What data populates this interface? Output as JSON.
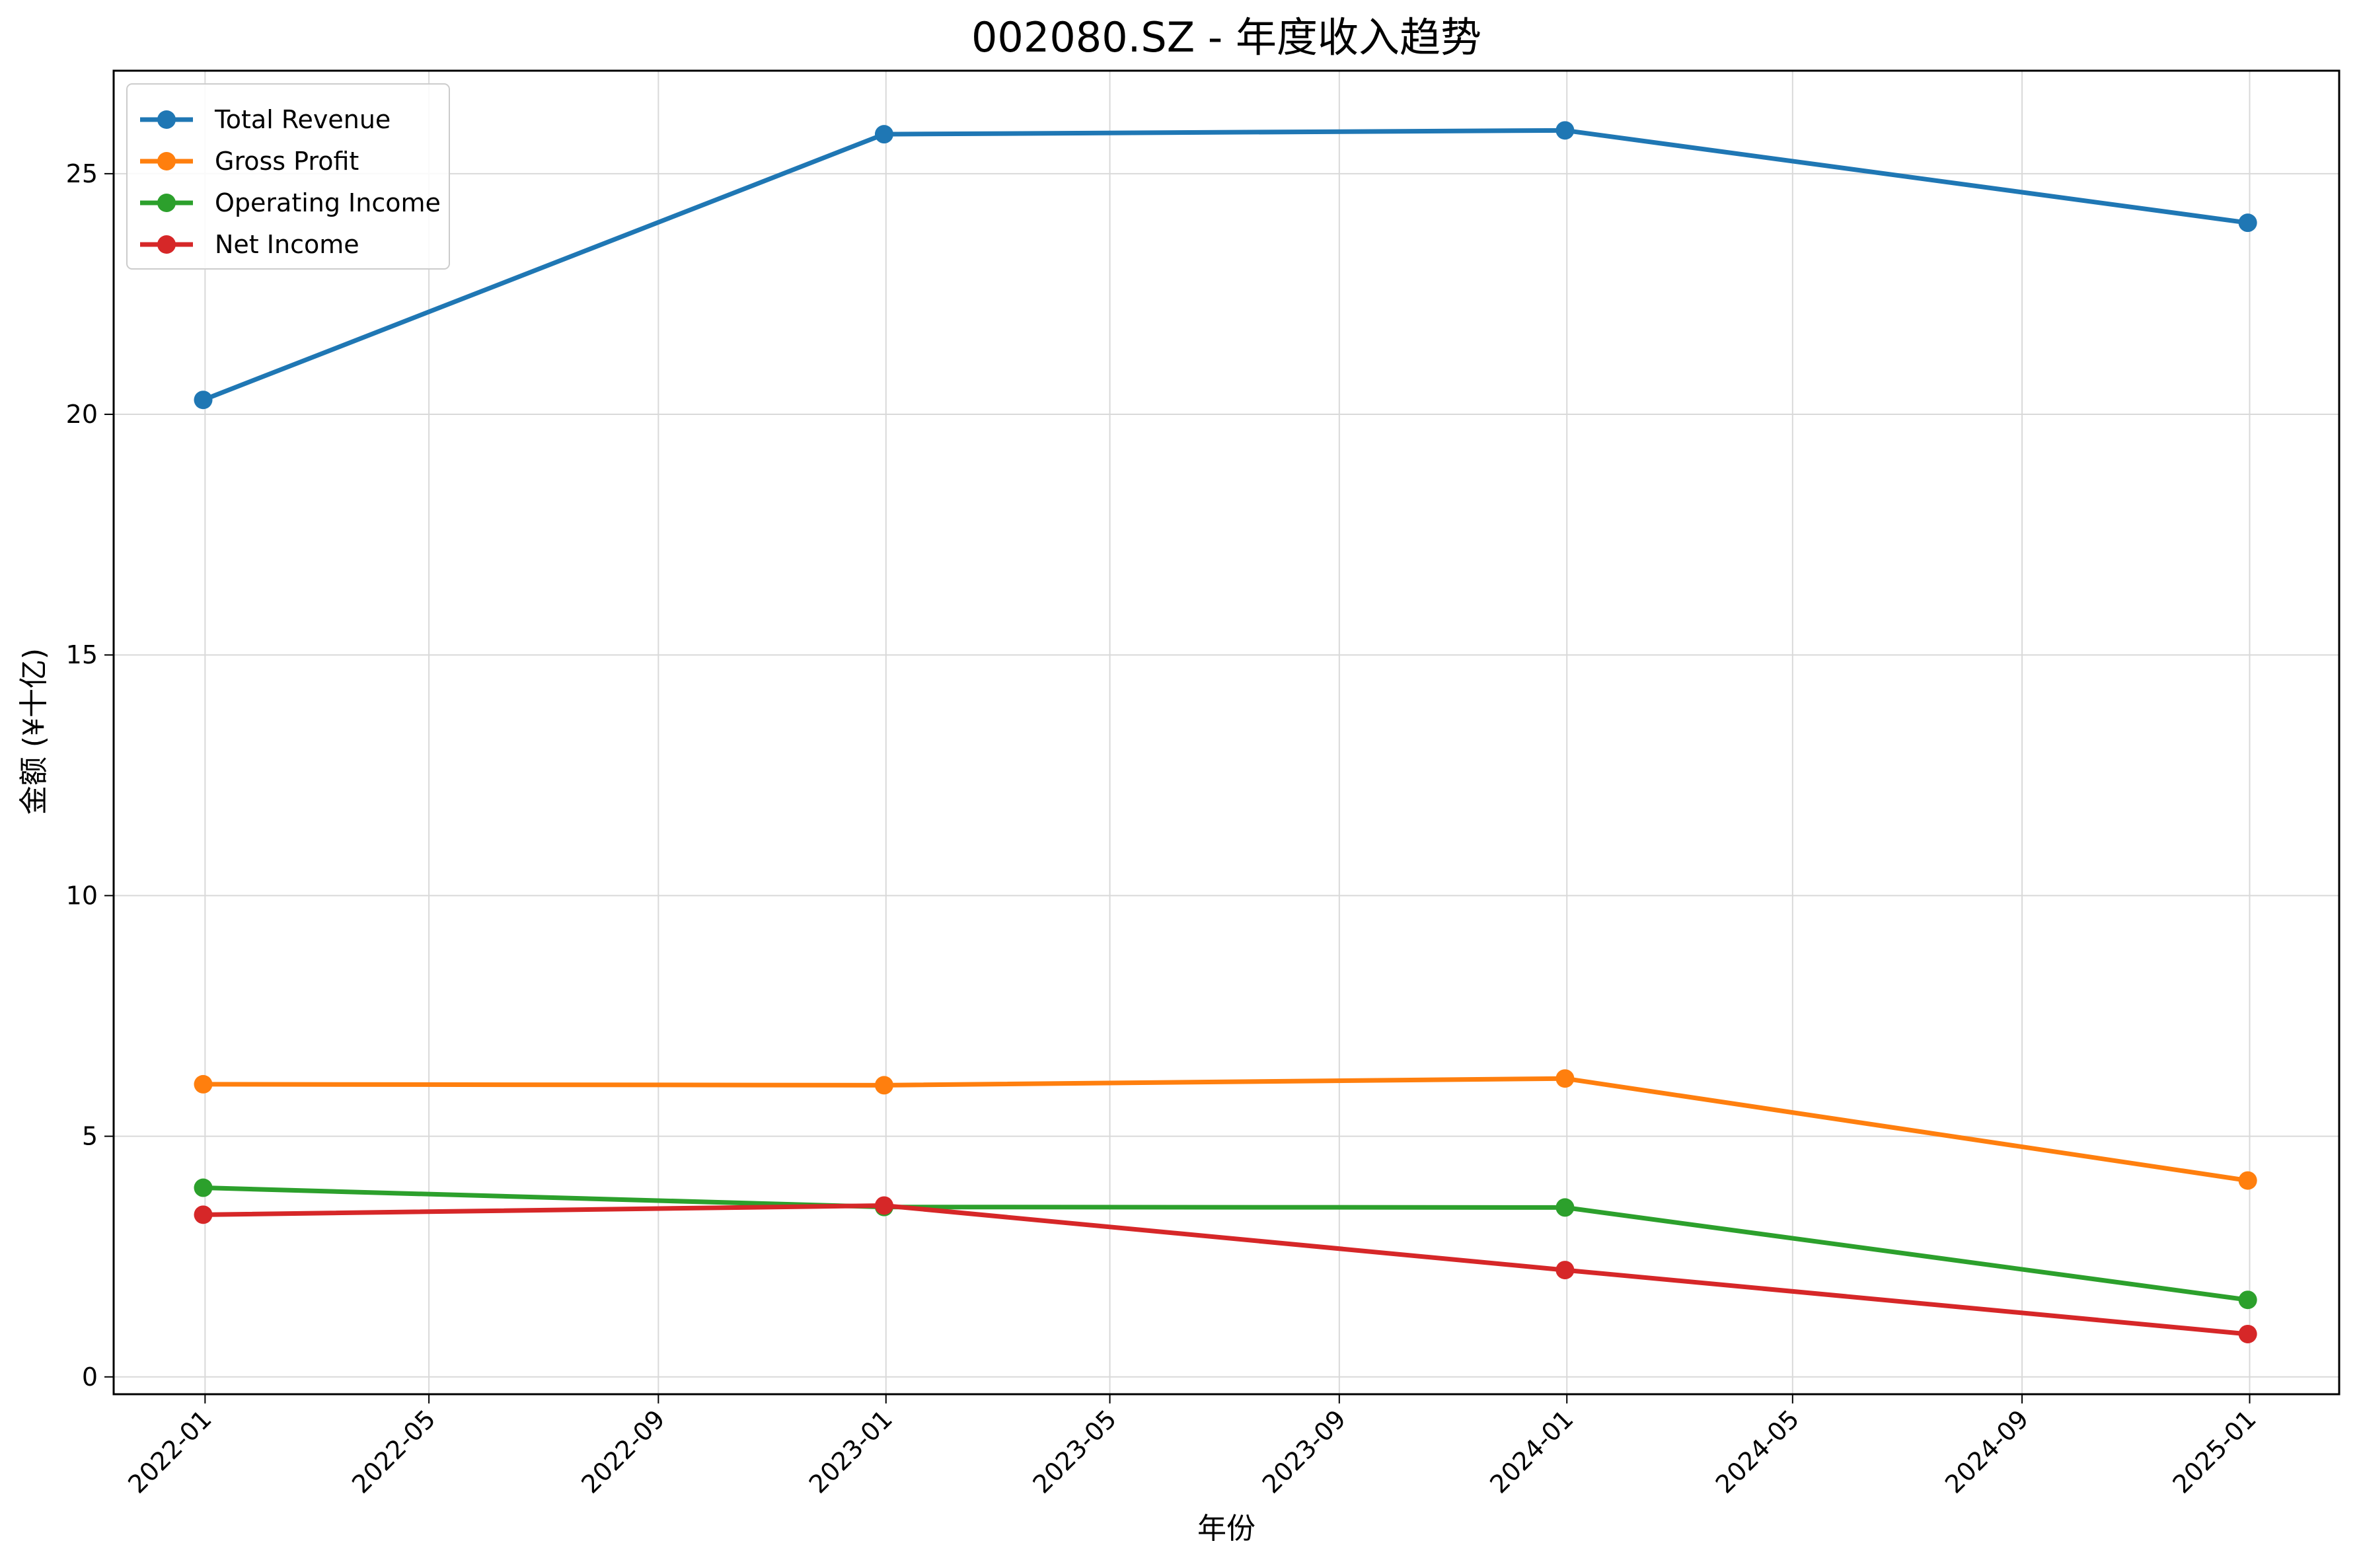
{
  "chart_data": {
    "type": "line",
    "title": "002080.SZ - 年度收入趋势",
    "xlabel": "年份",
    "ylabel": "金额 (¥十亿)",
    "x": [
      "2021-12-31",
      "2022-12-31",
      "2023-12-31",
      "2024-12-31"
    ],
    "x_ticks": [
      "2022-01",
      "2022-05",
      "2022-09",
      "2023-01",
      "2023-05",
      "2023-09",
      "2024-01",
      "2024-05",
      "2024-09",
      "2025-01"
    ],
    "x_range": [
      "2021-11-13",
      "2025-02-18"
    ],
    "y_ticks": [
      0,
      5,
      10,
      15,
      20,
      25
    ],
    "ylim": [
      -0.36,
      27.14
    ],
    "grid": true,
    "legend_position": "top-left",
    "series": [
      {
        "name": "Total Revenue",
        "color": "#1f77b4",
        "values": [
          20.3,
          25.82,
          25.9,
          23.98
        ]
      },
      {
        "name": "Gross Profit",
        "color": "#ff7f0e",
        "values": [
          6.08,
          6.06,
          6.2,
          4.08
        ]
      },
      {
        "name": "Operating Income",
        "color": "#2ca02c",
        "values": [
          3.93,
          3.53,
          3.52,
          1.6
        ]
      },
      {
        "name": "Net Income",
        "color": "#d62728",
        "values": [
          3.37,
          3.56,
          2.22,
          0.89
        ]
      }
    ]
  }
}
